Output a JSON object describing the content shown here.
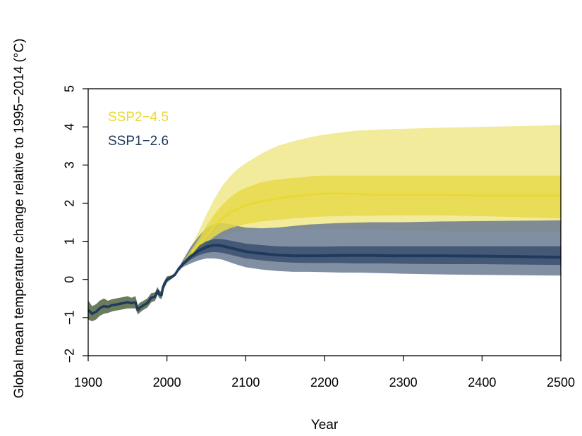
{
  "chart_data": {
    "type": "area",
    "title": "",
    "xlabel": "Year",
    "ylabel": "Global mean temperature change relative to 1995−2014 (°C)",
    "xlim": [
      1900,
      2500
    ],
    "ylim": [
      -2,
      5
    ],
    "x_ticks": [
      1900,
      2000,
      2100,
      2200,
      2300,
      2400,
      2500
    ],
    "y_ticks": [
      -2,
      -1,
      0,
      1,
      2,
      3,
      4,
      5
    ],
    "x_tick_labels": [
      "1900",
      "2000",
      "2100",
      "2200",
      "2300",
      "2400",
      "2500"
    ],
    "y_tick_labels": [
      "−2",
      "−1",
      "0",
      "1",
      "2",
      "3",
      "4",
      "5"
    ],
    "grid": false,
    "legend_position": "top-left",
    "historical": {
      "color": "#1f3a5f",
      "band_color": "#5a6e4a",
      "x": [
        1900,
        1905,
        1910,
        1915,
        1920,
        1925,
        1930,
        1935,
        1940,
        1945,
        1950,
        1955,
        1960,
        1963,
        1965,
        1970,
        1975,
        1980,
        1985,
        1988,
        1990,
        1993,
        1995,
        2000,
        2005,
        2010,
        2014
      ],
      "y": [
        -0.8,
        -0.9,
        -0.85,
        -0.75,
        -0.7,
        -0.72,
        -0.68,
        -0.66,
        -0.64,
        -0.62,
        -0.6,
        -0.62,
        -0.6,
        -0.8,
        -0.75,
        -0.68,
        -0.62,
        -0.48,
        -0.45,
        -0.3,
        -0.38,
        -0.42,
        -0.2,
        0.0,
        0.05,
        0.12,
        0.25
      ],
      "lower": [
        -1.05,
        -1.1,
        -1.05,
        -0.95,
        -0.9,
        -0.88,
        -0.84,
        -0.82,
        -0.8,
        -0.78,
        -0.76,
        -0.76,
        -0.76,
        -0.92,
        -0.88,
        -0.8,
        -0.74,
        -0.6,
        -0.56,
        -0.4,
        -0.48,
        -0.52,
        -0.3,
        -0.08,
        0.0,
        0.08,
        0.2
      ],
      "upper": [
        -0.55,
        -0.7,
        -0.65,
        -0.55,
        -0.5,
        -0.56,
        -0.52,
        -0.5,
        -0.48,
        -0.46,
        -0.44,
        -0.48,
        -0.44,
        -0.68,
        -0.62,
        -0.56,
        -0.5,
        -0.36,
        -0.34,
        -0.2,
        -0.28,
        -0.32,
        -0.1,
        0.08,
        0.1,
        0.16,
        0.3
      ]
    },
    "series": [
      {
        "name": "SSP2−4.5",
        "color": "#e8d92f",
        "inner_band_color": "#e8d94a",
        "outer_band_color": "#efe88a",
        "x": [
          2014,
          2020,
          2030,
          2040,
          2050,
          2060,
          2070,
          2080,
          2090,
          2100,
          2120,
          2140,
          2160,
          2180,
          2200,
          2220,
          2240,
          2260,
          2280,
          2300,
          2350,
          2400,
          2450,
          2500
        ],
        "y": [
          0.25,
          0.4,
          0.65,
          0.9,
          1.15,
          1.4,
          1.6,
          1.75,
          1.85,
          1.95,
          2.05,
          2.12,
          2.18,
          2.22,
          2.25,
          2.25,
          2.24,
          2.22,
          2.22,
          2.22,
          2.22,
          2.2,
          2.2,
          2.2
        ],
        "likely_lower": [
          0.25,
          0.35,
          0.55,
          0.75,
          0.95,
          1.12,
          1.25,
          1.34,
          1.4,
          1.45,
          1.52,
          1.56,
          1.6,
          1.63,
          1.65,
          1.66,
          1.67,
          1.67,
          1.68,
          1.68,
          1.68,
          1.66,
          1.63,
          1.6
        ],
        "likely_upper": [
          0.25,
          0.45,
          0.75,
          1.05,
          1.4,
          1.7,
          1.95,
          2.15,
          2.3,
          2.4,
          2.55,
          2.62,
          2.66,
          2.7,
          2.72,
          2.72,
          2.72,
          2.72,
          2.72,
          2.72,
          2.72,
          2.72,
          2.72,
          2.72
        ],
        "very_likely_lower": [
          0.25,
          0.32,
          0.5,
          0.7,
          0.88,
          1.02,
          1.12,
          1.2,
          1.25,
          1.28,
          1.32,
          1.33,
          1.33,
          1.33,
          1.33,
          1.33,
          1.32,
          1.3,
          1.29,
          1.28,
          1.26,
          1.25,
          1.25,
          1.25
        ],
        "very_likely_upper": [
          0.25,
          0.5,
          0.85,
          1.25,
          1.7,
          2.1,
          2.45,
          2.7,
          2.9,
          3.05,
          3.3,
          3.5,
          3.62,
          3.72,
          3.8,
          3.85,
          3.9,
          3.92,
          3.94,
          3.95,
          3.98,
          4.0,
          4.02,
          4.05
        ]
      },
      {
        "name": "SSP1−2.6",
        "color": "#1f3a5f",
        "inner_band_color": "#3b4f6e",
        "outer_band_color": "#6b7b93",
        "x": [
          2014,
          2020,
          2030,
          2040,
          2050,
          2060,
          2070,
          2080,
          2090,
          2100,
          2120,
          2140,
          2160,
          2180,
          2200,
          2220,
          2240,
          2260,
          2280,
          2300,
          2350,
          2400,
          2450,
          2500
        ],
        "y": [
          0.25,
          0.4,
          0.6,
          0.75,
          0.85,
          0.9,
          0.88,
          0.83,
          0.78,
          0.73,
          0.68,
          0.64,
          0.62,
          0.62,
          0.62,
          0.63,
          0.63,
          0.63,
          0.62,
          0.62,
          0.62,
          0.61,
          0.6,
          0.58
        ],
        "likely_lower": [
          0.25,
          0.36,
          0.52,
          0.63,
          0.7,
          0.72,
          0.7,
          0.65,
          0.6,
          0.55,
          0.5,
          0.46,
          0.44,
          0.43,
          0.43,
          0.43,
          0.42,
          0.42,
          0.42,
          0.41,
          0.4,
          0.4,
          0.39,
          0.38
        ],
        "likely_upper": [
          0.25,
          0.44,
          0.7,
          0.88,
          1.0,
          1.06,
          1.06,
          1.02,
          0.98,
          0.94,
          0.9,
          0.87,
          0.86,
          0.86,
          0.86,
          0.87,
          0.87,
          0.87,
          0.87,
          0.87,
          0.87,
          0.87,
          0.87,
          0.87
        ],
        "very_likely_lower": [
          0.25,
          0.32,
          0.42,
          0.5,
          0.55,
          0.55,
          0.52,
          0.45,
          0.38,
          0.32,
          0.26,
          0.22,
          0.2,
          0.2,
          0.19,
          0.18,
          0.18,
          0.17,
          0.16,
          0.15,
          0.13,
          0.12,
          0.11,
          0.1
        ],
        "very_likely_upper": [
          0.25,
          0.5,
          0.85,
          1.12,
          1.35,
          1.45,
          1.48,
          1.45,
          1.4,
          1.36,
          1.34,
          1.36,
          1.4,
          1.44,
          1.46,
          1.48,
          1.49,
          1.5,
          1.5,
          1.5,
          1.52,
          1.53,
          1.54,
          1.55
        ]
      }
    ]
  }
}
